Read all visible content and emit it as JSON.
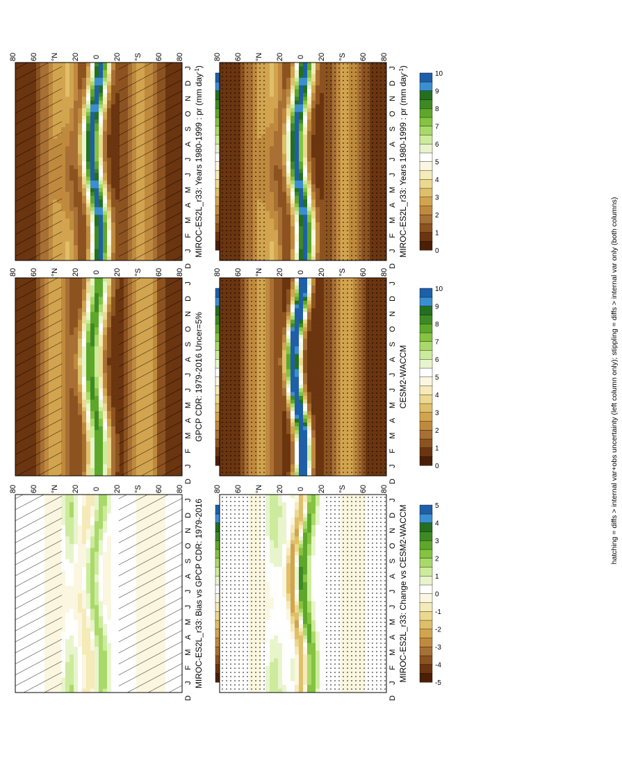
{
  "figure": {
    "footnote": "hatching = diffs > internal var+obs uncertainty (left column only); stippling = diffs > internal var only (both columns)"
  },
  "palettes": {
    "abs": [
      "#4a1f05",
      "#6b3510",
      "#8c5320",
      "#a87035",
      "#c08a3e",
      "#d2a44f",
      "#e0bf6a",
      "#ecd88f",
      "#f5eab8",
      "#fbf6df",
      "#ffffff",
      "#e8f5cc",
      "#cdeb9c",
      "#aad96b",
      "#85c340",
      "#5da82a",
      "#3d8a25",
      "#24701f",
      "#3a8fd0",
      "#1e5fa8"
    ],
    "diff": [
      "#4a1f05",
      "#6b3510",
      "#8c5320",
      "#a87035",
      "#c08a3e",
      "#d2a44f",
      "#e0bf6a",
      "#ecd88f",
      "#f5eab8",
      "#fbf6df",
      "#ffffff",
      "#e8f5cc",
      "#cdeb9c",
      "#aad96b",
      "#85c340",
      "#5da82a",
      "#3d8a25",
      "#24701f",
      "#3a8fd0",
      "#1e5fa8"
    ]
  },
  "chart_data": [
    {
      "id": "p1",
      "type": "heatmap",
      "title": "MIROC-ES2L_r33: Years 1980-1999 : pr (mm day",
      "title_sup": "-1",
      "title_end": ")",
      "x": [
        "D",
        "J",
        "F",
        "M",
        "A",
        "M",
        "J",
        "J",
        "A",
        "S",
        "O",
        "N",
        "D",
        "J"
      ],
      "y_ticks": [
        "80",
        "60",
        "°N",
        "20",
        "0",
        "20",
        "°S",
        "60",
        "80"
      ],
      "zlim": [
        0,
        10
      ],
      "field": "abs",
      "overlay": "hatch",
      "colorbar_labels": [
        "10",
        "9",
        "8",
        "7",
        "6",
        "5",
        "4",
        "3",
        "2",
        "1",
        "0"
      ]
    },
    {
      "id": "p2",
      "type": "heatmap",
      "title": "MIROC-ES2L_r33: Years 1980-1999 : pr (mm day",
      "title_sup": "-1",
      "title_end": ")",
      "x": [
        "D",
        "J",
        "F",
        "M",
        "A",
        "M",
        "J",
        "J",
        "A",
        "S",
        "O",
        "N",
        "D",
        "J"
      ],
      "y_ticks": [
        "80",
        "60",
        "°N",
        "20",
        "0",
        "20",
        "°S",
        "60",
        "80"
      ],
      "zlim": [
        0,
        10
      ],
      "field": "abs",
      "overlay": "stipple",
      "colorbar_labels": [
        "10",
        "9",
        "8",
        "7",
        "6",
        "5",
        "4",
        "3",
        "2",
        "1",
        "0"
      ]
    },
    {
      "id": "p3",
      "type": "heatmap",
      "title": "GPCP CDR: 1979-2016 Uncer=5%",
      "x": [
        "D",
        "J",
        "F",
        "M",
        "A",
        "M",
        "J",
        "J",
        "A",
        "S",
        "O",
        "N",
        "D",
        "J"
      ],
      "y_ticks": [
        "80",
        "60",
        "°N",
        "20",
        "0",
        "20",
        "°S",
        "60",
        "80"
      ],
      "zlim": [
        0,
        10
      ],
      "field": "obs",
      "overlay": "hatch",
      "colorbar_labels": [
        "10",
        "9",
        "8",
        "7",
        "6",
        "5",
        "4",
        "3",
        "2",
        "1",
        "0"
      ]
    },
    {
      "id": "p4",
      "type": "heatmap",
      "title": "CESM2-WACCM",
      "x": [
        "D",
        "J",
        "F",
        "M",
        "A",
        "M",
        "J",
        "J",
        "A",
        "S",
        "O",
        "N",
        "D",
        "J"
      ],
      "y_ticks": [
        "80",
        "60",
        "°N",
        "20",
        "0",
        "20",
        "°S",
        "60",
        "80"
      ],
      "zlim": [
        0,
        10
      ],
      "field": "cesm",
      "overlay": "stipple",
      "colorbar_labels": [
        "10",
        "9",
        "8",
        "7",
        "6",
        "5",
        "4",
        "3",
        "2",
        "1",
        "0"
      ]
    },
    {
      "id": "p5",
      "type": "heatmap",
      "title": "MIROC-ES2L_r33: Bias vs GPCP CDR: 1979-2016",
      "x": [
        "D",
        "J",
        "F",
        "M",
        "A",
        "M",
        "J",
        "J",
        "A",
        "S",
        "O",
        "N",
        "D",
        "J"
      ],
      "y_ticks": [
        "80",
        "60",
        "°N",
        "20",
        "0",
        "20",
        "°S",
        "60",
        "80"
      ],
      "zlim": [
        -5,
        5
      ],
      "field": "bias",
      "overlay": "hatch",
      "colorbar_labels": [
        "5",
        "4",
        "3",
        "2",
        "1",
        "0",
        "-1",
        "-2",
        "-3",
        "-4",
        "-5"
      ]
    },
    {
      "id": "p6",
      "type": "heatmap",
      "title": "MIROC-ES2L_r33: Change vs CESM2-WACCM",
      "x": [
        "D",
        "J",
        "F",
        "M",
        "A",
        "M",
        "J",
        "J",
        "A",
        "S",
        "O",
        "N",
        "D",
        "J"
      ],
      "y_ticks": [
        "80",
        "60",
        "°N",
        "20",
        "0",
        "20",
        "°S",
        "60",
        "80"
      ],
      "zlim": [
        -5,
        5
      ],
      "field": "change",
      "overlay": "stipple",
      "colorbar_labels": [
        "5",
        "4",
        "3",
        "2",
        "1",
        "0",
        "-1",
        "-2",
        "-3",
        "-4",
        "-5"
      ]
    }
  ]
}
